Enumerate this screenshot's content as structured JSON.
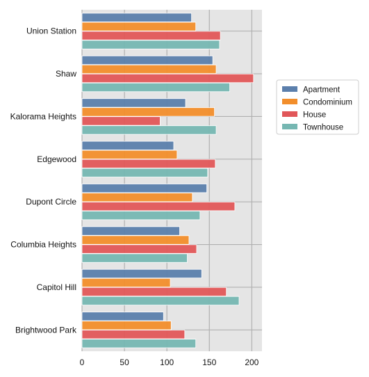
{
  "chart_data": {
    "type": "bar",
    "orientation": "horizontal",
    "categories": [
      "Union Station",
      "Shaw",
      "Kalorama Heights",
      "Edgewood",
      "Dupont Circle",
      "Columbia Heights",
      "Capitol Hill",
      "Brightwood Park"
    ],
    "series": [
      {
        "name": "Apartment",
        "color": "#5b7fac",
        "values": [
          129,
          154,
          122,
          108,
          147,
          115,
          141,
          96
        ]
      },
      {
        "name": "Condominium",
        "color": "#f28e2b",
        "values": [
          134,
          158,
          156,
          112,
          130,
          126,
          104,
          105
        ]
      },
      {
        "name": "House",
        "color": "#e15759",
        "values": [
          163,
          202,
          92,
          157,
          180,
          135,
          170,
          121
        ]
      },
      {
        "name": "Townhouse",
        "color": "#76b7b2",
        "values": [
          162,
          174,
          158,
          148,
          139,
          124,
          185,
          134
        ]
      }
    ],
    "xlim": [
      0,
      212
    ],
    "xticks": [
      "0",
      "50",
      "100",
      "150",
      "200"
    ],
    "tick_values": [
      0,
      50,
      100,
      150,
      200
    ],
    "legend_position": "right",
    "grid": true,
    "background": "#e5e5e5",
    "grid_color": "#b0b0b0"
  }
}
